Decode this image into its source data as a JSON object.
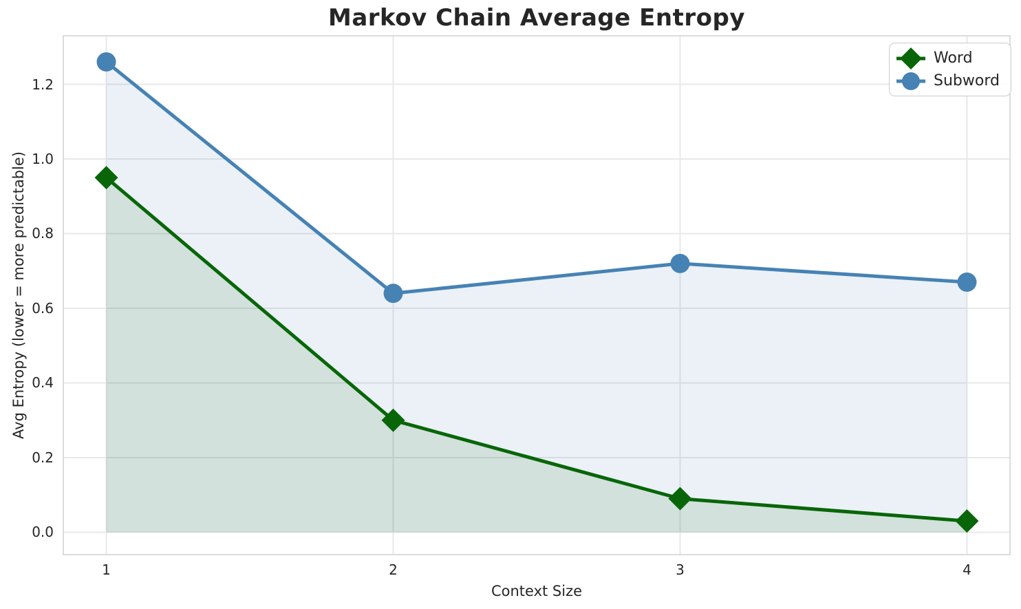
{
  "chart_data": {
    "type": "line",
    "title": "Markov Chain Average Entropy",
    "xlabel": "Context Size",
    "ylabel": "Avg Entropy (lower = more predictable)",
    "x": [
      1,
      2,
      3,
      4
    ],
    "series": [
      {
        "name": "Word",
        "values": [
          0.95,
          0.3,
          0.09,
          0.03
        ],
        "color": "#086608",
        "fill": "rgba(8,102,8,0.11)",
        "marker": "diamond"
      },
      {
        "name": "Subword",
        "values": [
          1.26,
          0.64,
          0.72,
          0.67
        ],
        "color": "#4682b4",
        "fill": "rgba(70,130,180,0.11)",
        "marker": "circle"
      }
    ],
    "xlim": [
      0.85,
      4.15
    ],
    "ylim": [
      -0.06,
      1.33
    ],
    "xticks": [
      1,
      2,
      3,
      4
    ],
    "xtick_labels": [
      "1",
      "2",
      "3",
      "4"
    ],
    "ytick_values": [
      0.0,
      0.2,
      0.4,
      0.6,
      0.8,
      1.0,
      1.2
    ],
    "ytick_labels": [
      "0.0",
      "0.2",
      "0.4",
      "0.6",
      "0.8",
      "1.0",
      "1.2"
    ],
    "grid": true,
    "area_fill_baseline": 0,
    "legend_position": "top-right"
  },
  "colors": {
    "background": "#ffffff",
    "grid": "#e8e8e8",
    "spine": "#d4d4d4",
    "text": "#262626"
  }
}
